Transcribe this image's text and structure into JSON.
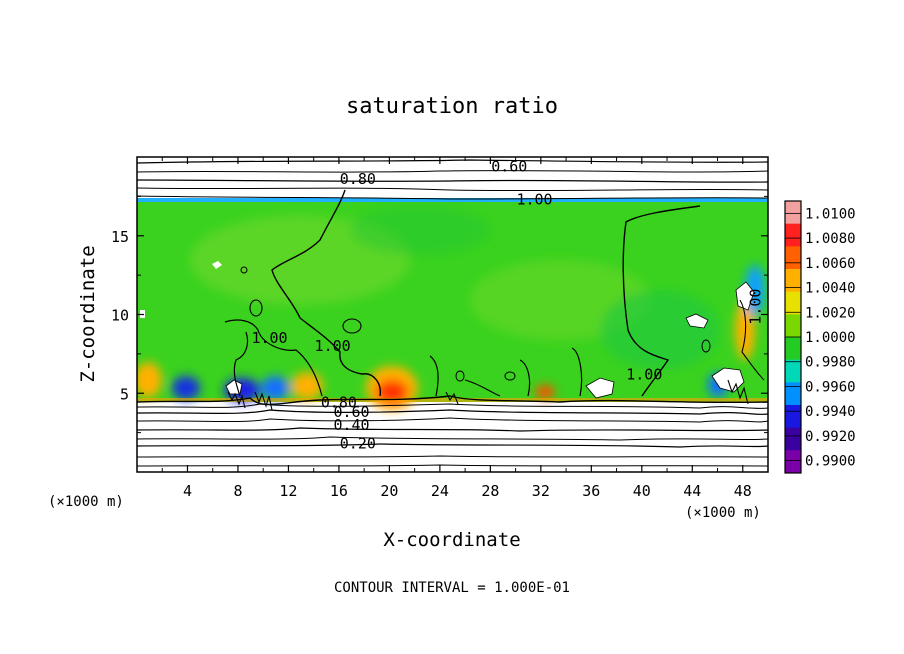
{
  "chart_data": {
    "type": "heatmap",
    "title": "saturation ratio",
    "xlabel": "X-coordinate",
    "ylabel": "Z-coordinate",
    "x_unit": "(×1000 m)",
    "x_unit_right": "(×1000 m)",
    "xlim": [
      0,
      50
    ],
    "ylim": [
      0,
      20
    ],
    "xticks": [
      4,
      8,
      12,
      16,
      20,
      24,
      28,
      32,
      36,
      40,
      44,
      48
    ],
    "yticks": [
      5,
      10,
      15
    ],
    "contour_interval_text": "CONTOUR INTERVAL = 1.000E-01",
    "contour_labels": [
      {
        "text": "0.60",
        "x": 29.5,
        "z": 19.4
      },
      {
        "text": "0.80",
        "x": 17.5,
        "z": 18.6
      },
      {
        "text": "1.00",
        "x": 31.5,
        "z": 17.3
      },
      {
        "text": "1.00",
        "x": 10.5,
        "z": 8.5
      },
      {
        "text": "1.00",
        "x": 15.5,
        "z": 8.0
      },
      {
        "text": "1.00",
        "x": 40.2,
        "z": 6.2
      },
      {
        "text": "1.00",
        "x": 49.0,
        "z": 10.5
      },
      {
        "text": "0.80",
        "x": 16.0,
        "z": 4.4
      },
      {
        "text": "0.60",
        "x": 17.0,
        "z": 3.8
      },
      {
        "text": "0.40",
        "x": 17.0,
        "z": 3.0
      },
      {
        "text": "0.20",
        "x": 17.5,
        "z": 1.8
      }
    ],
    "colorbar": {
      "levels": [
        "1.0100",
        "1.0080",
        "1.0060",
        "1.0040",
        "1.0020",
        "1.0000",
        "0.9980",
        "0.9960",
        "0.9940",
        "0.9920",
        "0.9900"
      ],
      "colors": [
        "#f3a0a0",
        "#ff2020",
        "#ff6000",
        "#ffb000",
        "#e8e000",
        "#7ad800",
        "#22cc22",
        "#00d8b8",
        "#0090ff",
        "#1818e0",
        "#3a00a0",
        "#7a00a8"
      ]
    }
  }
}
